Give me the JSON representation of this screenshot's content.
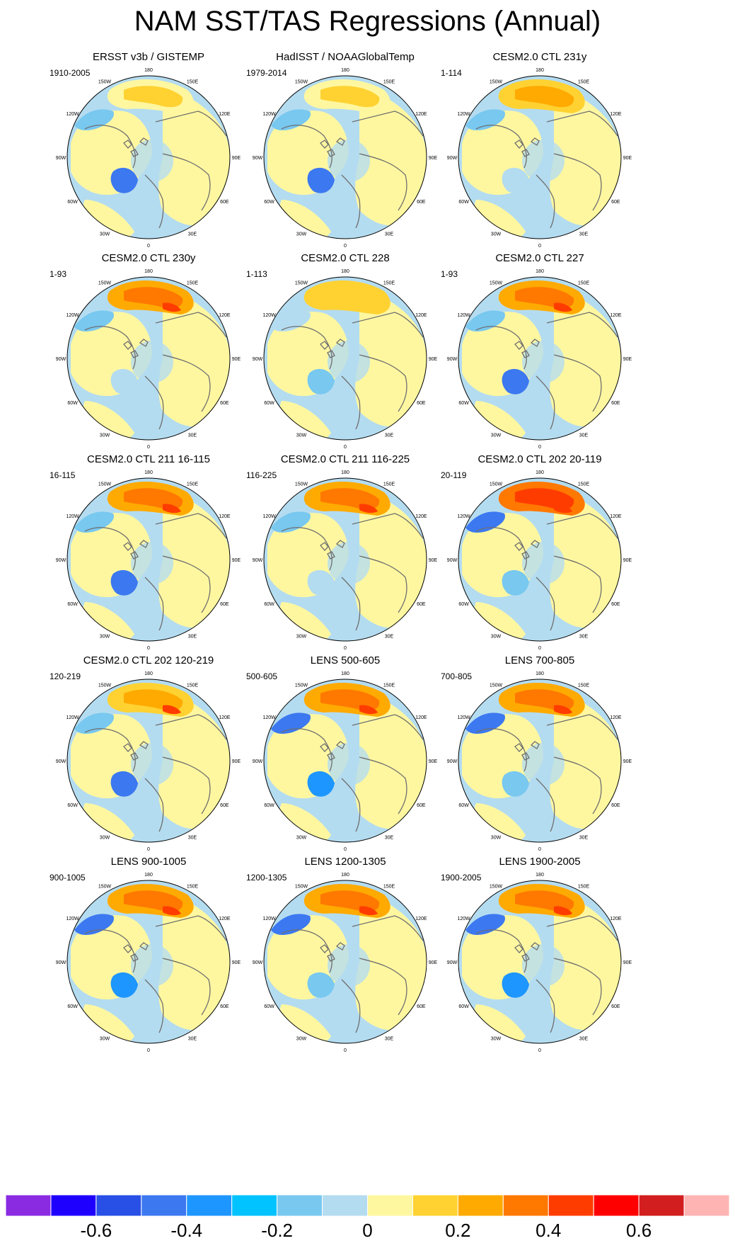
{
  "title": "NAM SST/TAS Regressions (Annual)",
  "colors": {
    "land_yellow": "#fff7a0",
    "light_blue": "#b4dcf0",
    "coast": "#6e6e6e"
  },
  "panels": [
    {
      "title": "ERSST v3b / GISTEMP",
      "years": "1910-2005"
    },
    {
      "title": "HadISST / NOAAGlobalTemp",
      "years": "1979-2014"
    },
    {
      "title": "CESM2.0 CTL 231y",
      "years": "1-114"
    },
    {
      "title": "CESM2.0 CTL 230y",
      "years": "1-93"
    },
    {
      "title": "CESM2.0 CTL 228",
      "years": "1-113"
    },
    {
      "title": "CESM2.0 CTL 227",
      "years": "1-93"
    },
    {
      "title": "CESM2.0 CTL 211 16-115",
      "years": "16-115"
    },
    {
      "title": "CESM2.0 CTL 211 116-225",
      "years": "116-225"
    },
    {
      "title": "CESM2.0 CTL 202 20-119",
      "years": "20-119"
    },
    {
      "title": "CESM2.0 CTL 202 120-219",
      "years": "120-219"
    },
    {
      "title": "LENS 500-605",
      "years": "500-605"
    },
    {
      "title": "LENS 700-805",
      "years": "700-805"
    },
    {
      "title": "LENS 900-1005",
      "years": "900-1005"
    },
    {
      "title": "LENS 1200-1305",
      "years": "1200-1305"
    },
    {
      "title": "LENS 1900-2005",
      "years": "1900-2005"
    }
  ],
  "map_labels": {
    "lon_180": "180",
    "lon_150e": "150E",
    "lon_120e": "120E",
    "lon_90e": "90E",
    "lon_60e": "60E",
    "lon_30e": "30E",
    "lon_0": "0",
    "lon_30w": "30W",
    "lon_60w": "60W",
    "lon_90w": "90W",
    "lon_120w": "120W",
    "lon_150w": "150W"
  },
  "colorbar": {
    "colors": [
      "#8a2be2",
      "#1e00ff",
      "#2850e6",
      "#3c78f0",
      "#1e96ff",
      "#00c3ff",
      "#78c8f0",
      "#b4dcf0",
      "#fff7a0",
      "#ffd232",
      "#ffaa00",
      "#ff7800",
      "#ff3c00",
      "#ff0000",
      "#d21e1e",
      "#ffb4b4"
    ],
    "labels": [
      "-0.6",
      "-0.4",
      "-0.2",
      "0",
      "0.2",
      "0.4",
      "0.6"
    ]
  }
}
